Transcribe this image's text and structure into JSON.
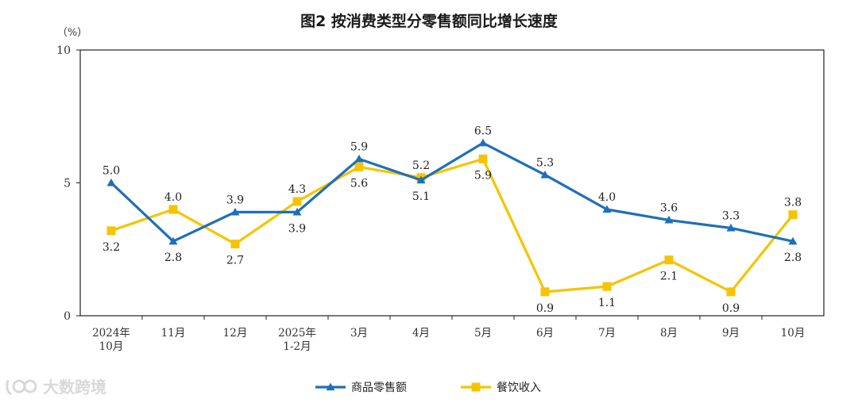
{
  "chart_data": {
    "type": "line",
    "title": "图2  按消费类型分零售额同比增长速度",
    "ylabel": "（%）",
    "ylim": [
      0,
      10
    ],
    "yticks": [
      0,
      5,
      10
    ],
    "categories": [
      [
        "2024年",
        "10月"
      ],
      [
        "11月"
      ],
      [
        "12月"
      ],
      [
        "2025年",
        "1-2月"
      ],
      [
        "3月"
      ],
      [
        "4月"
      ],
      [
        "5月"
      ],
      [
        "6月"
      ],
      [
        "7月"
      ],
      [
        "8月"
      ],
      [
        "9月"
      ],
      [
        "10月"
      ]
    ],
    "series": [
      {
        "name": "商品零售额",
        "color": "#1f6fb9",
        "marker": "triangle",
        "values": [
          5.0,
          2.8,
          3.9,
          3.9,
          5.9,
          5.1,
          6.5,
          5.3,
          4.0,
          3.6,
          3.3,
          2.8
        ],
        "labels": [
          "5.0",
          "2.8",
          "3.9",
          "3.9",
          "5.9",
          "5.1",
          "6.5",
          "5.3",
          "4.0",
          "3.6",
          "3.3",
          "2.8"
        ],
        "label_pos": [
          "above",
          "below",
          "above",
          "below",
          "above",
          "below",
          "above",
          "above",
          "above",
          "above",
          "above",
          "below"
        ]
      },
      {
        "name": "餐饮收入",
        "color": "#f5c400",
        "marker": "square",
        "values": [
          3.2,
          4.0,
          2.7,
          4.3,
          5.6,
          5.2,
          5.9,
          0.9,
          1.1,
          2.1,
          0.9,
          3.8
        ],
        "labels": [
          "3.2",
          "4.0",
          "2.7",
          "4.3",
          "5.6",
          "5.2",
          "5.9",
          "0.9",
          "1.1",
          "2.1",
          "0.9",
          "3.8"
        ],
        "label_pos": [
          "below",
          "above",
          "below",
          "above",
          "below",
          "above",
          "below",
          "below",
          "below",
          "below",
          "below",
          "above"
        ]
      }
    ],
    "legend": "bottom-center"
  },
  "watermark": {
    "text": "大数跨境"
  }
}
